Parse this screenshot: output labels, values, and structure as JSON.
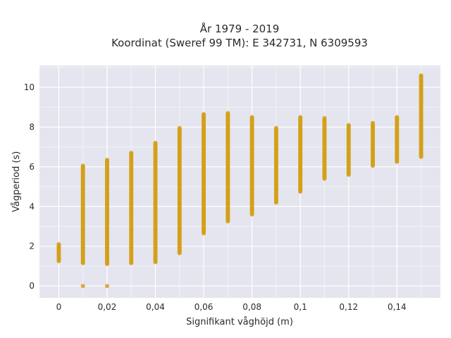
{
  "chart_data": {
    "type": "scatter",
    "title": [
      "År 1979 - 2019",
      "Koordinat (Sweref 99 TM): E 342731, N 6309593"
    ],
    "xlabel": "Signifikant våghöjd (m)",
    "ylabel": "Vågperiod (s)",
    "xlim": [
      -0.008,
      0.158
    ],
    "ylim": [
      -0.6,
      11.1
    ],
    "x_ticks": [
      0,
      0.02,
      0.04,
      0.06,
      0.08,
      0.1,
      0.12,
      0.14
    ],
    "x_tick_labels": [
      "0",
      "0,02",
      "0,04",
      "0,06",
      "0,08",
      "0,1",
      "0,12",
      "0,14"
    ],
    "y_ticks": [
      0,
      2,
      4,
      6,
      8,
      10
    ],
    "y_tick_labels": [
      "0",
      "2",
      "4",
      "6",
      "8",
      "10"
    ],
    "grid": true,
    "marker_color": "#D4A017",
    "background_color": "#E5E5EF",
    "columns": [
      {
        "x": 0.0,
        "ymin": 1.25,
        "ymax": 2.1
      },
      {
        "x": 0.01,
        "ymin": 1.15,
        "ymax": 6.05,
        "extra": [
          0.0
        ]
      },
      {
        "x": 0.02,
        "ymin": 1.1,
        "ymax": 6.35,
        "extra": [
          0.0
        ]
      },
      {
        "x": 0.03,
        "ymin": 1.15,
        "ymax": 6.7
      },
      {
        "x": 0.04,
        "ymin": 1.2,
        "ymax": 7.2
      },
      {
        "x": 0.05,
        "ymin": 1.65,
        "ymax": 7.95
      },
      {
        "x": 0.06,
        "ymin": 2.65,
        "ymax": 8.65
      },
      {
        "x": 0.07,
        "ymin": 3.25,
        "ymax": 8.7
      },
      {
        "x": 0.08,
        "ymin": 3.6,
        "ymax": 8.5
      },
      {
        "x": 0.09,
        "ymin": 4.2,
        "ymax": 7.95
      },
      {
        "x": 0.1,
        "ymin": 4.75,
        "ymax": 8.5
      },
      {
        "x": 0.11,
        "ymin": 5.4,
        "ymax": 8.45
      },
      {
        "x": 0.12,
        "ymin": 5.6,
        "ymax": 8.1
      },
      {
        "x": 0.13,
        "ymin": 6.05,
        "ymax": 8.2
      },
      {
        "x": 0.14,
        "ymin": 6.25,
        "ymax": 8.5
      },
      {
        "x": 0.15,
        "ymin": 6.5,
        "ymax": 10.6
      }
    ]
  }
}
